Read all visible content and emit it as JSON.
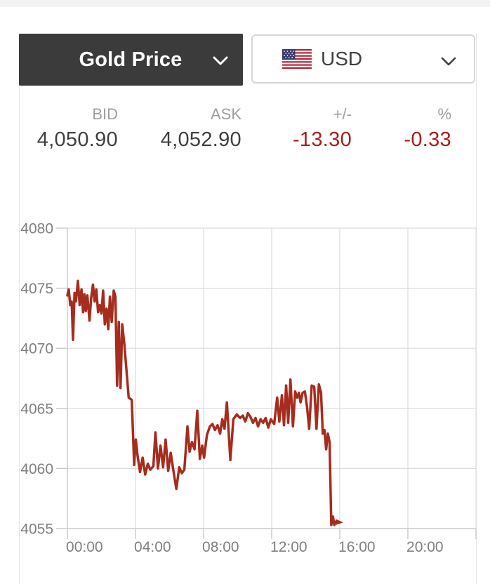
{
  "header": {
    "metal_select": {
      "label": "Gold Price",
      "icon": "chevron-down"
    },
    "currency_select": {
      "label": "USD",
      "flag": "us-flag",
      "icon": "chevron-down"
    }
  },
  "quote": {
    "columns": [
      {
        "header": "BID",
        "value": "4,050.90"
      },
      {
        "header": "ASK",
        "value": "4,052.90"
      },
      {
        "header": "+/-",
        "value": "-13.30"
      },
      {
        "header": "%",
        "value": "-0.33"
      }
    ]
  },
  "colors": {
    "accent_red": "#A81B1B",
    "line_red": "#A62C1E",
    "dark_panel": "#3B3B3B",
    "grid_gray": "#DCDCDC",
    "axis_text_gray": "#808080"
  },
  "chart_data": {
    "type": "line",
    "title": "",
    "xlabel": "",
    "ylabel": "",
    "grid": true,
    "legend": false,
    "x_axis": {
      "range_hours": [
        0,
        24
      ],
      "start_time": "23:00",
      "gridline_hours": [
        0,
        4,
        8,
        12,
        16,
        20,
        24
      ],
      "label_hours": [
        1,
        5,
        9,
        13,
        17,
        21
      ],
      "labels": [
        "00:00",
        "04:00",
        "08:00",
        "12:00",
        "16:00",
        "20:00"
      ]
    },
    "y_axis": {
      "range": [
        4055,
        4080
      ],
      "ticks": [
        4080,
        4075,
        4070,
        4065,
        4060,
        4055
      ]
    },
    "series": [
      {
        "name": "gold-price-usd",
        "color": "#A62C1E",
        "end_marker": "flag",
        "points": [
          [
            0.0,
            4074.4
          ],
          [
            0.08,
            4074.9
          ],
          [
            0.17,
            4073.6
          ],
          [
            0.25,
            4073.9
          ],
          [
            0.33,
            4070.7
          ],
          [
            0.42,
            4074.6
          ],
          [
            0.5,
            4073.9
          ],
          [
            0.62,
            4075.6
          ],
          [
            0.72,
            4073.6
          ],
          [
            0.83,
            4074.9
          ],
          [
            0.92,
            4073.0
          ],
          [
            1.0,
            4074.5
          ],
          [
            1.08,
            4073.1
          ],
          [
            1.17,
            4074.4
          ],
          [
            1.3,
            4072.3
          ],
          [
            1.4,
            4074.2
          ],
          [
            1.5,
            4075.3
          ],
          [
            1.6,
            4073.9
          ],
          [
            1.7,
            4074.9
          ],
          [
            1.8,
            4073.0
          ],
          [
            1.9,
            4073.6
          ],
          [
            2.0,
            4072.9
          ],
          [
            2.1,
            4074.8
          ],
          [
            2.2,
            4072.0
          ],
          [
            2.3,
            4073.3
          ],
          [
            2.4,
            4071.6
          ],
          [
            2.5,
            4074.3
          ],
          [
            2.6,
            4072.2
          ],
          [
            2.72,
            4074.8
          ],
          [
            2.82,
            4074.3
          ],
          [
            2.92,
            4066.9
          ],
          [
            3.02,
            4072.2
          ],
          [
            3.12,
            4066.7
          ],
          [
            3.22,
            4072.0
          ],
          [
            3.35,
            4070.3
          ],
          [
            3.48,
            4068.0
          ],
          [
            3.6,
            4065.9
          ],
          [
            3.78,
            4065.7
          ],
          [
            3.92,
            4060.3
          ],
          [
            4.02,
            4062.4
          ],
          [
            4.12,
            4061.1
          ],
          [
            4.27,
            4059.7
          ],
          [
            4.42,
            4060.9
          ],
          [
            4.57,
            4059.5
          ],
          [
            4.72,
            4060.4
          ],
          [
            4.87,
            4059.9
          ],
          [
            5.05,
            4060.2
          ],
          [
            5.17,
            4063.0
          ],
          [
            5.32,
            4060.0
          ],
          [
            5.47,
            4061.9
          ],
          [
            5.62,
            4060.1
          ],
          [
            5.77,
            4062.4
          ],
          [
            5.92,
            4059.8
          ],
          [
            6.07,
            4061.3
          ],
          [
            6.22,
            4059.9
          ],
          [
            6.4,
            4058.3
          ],
          [
            6.57,
            4060.1
          ],
          [
            6.72,
            4059.6
          ],
          [
            6.87,
            4059.9
          ],
          [
            7.05,
            4063.5
          ],
          [
            7.18,
            4061.4
          ],
          [
            7.32,
            4062.2
          ],
          [
            7.47,
            4061.6
          ],
          [
            7.63,
            4064.8
          ],
          [
            7.78,
            4060.8
          ],
          [
            7.92,
            4061.9
          ],
          [
            8.03,
            4060.9
          ],
          [
            8.2,
            4062.8
          ],
          [
            8.37,
            4063.5
          ],
          [
            8.52,
            4063.7
          ],
          [
            8.67,
            4063.2
          ],
          [
            8.82,
            4063.6
          ],
          [
            8.97,
            4062.9
          ],
          [
            9.1,
            4064.1
          ],
          [
            9.23,
            4063.3
          ],
          [
            9.37,
            4065.5
          ],
          [
            9.57,
            4060.7
          ],
          [
            9.75,
            4064.1
          ],
          [
            9.95,
            4064.5
          ],
          [
            10.15,
            4064.2
          ],
          [
            10.3,
            4064.4
          ],
          [
            10.45,
            4063.9
          ],
          [
            10.6,
            4064.6
          ],
          [
            10.75,
            4064.3
          ],
          [
            10.9,
            4063.8
          ],
          [
            11.05,
            4064.2
          ],
          [
            11.2,
            4063.5
          ],
          [
            11.35,
            4064.1
          ],
          [
            11.5,
            4063.8
          ],
          [
            11.65,
            4064.2
          ],
          [
            11.8,
            4063.4
          ],
          [
            11.95,
            4064.1
          ],
          [
            12.15,
            4063.7
          ],
          [
            12.32,
            4065.9
          ],
          [
            12.45,
            4063.9
          ],
          [
            12.6,
            4066.1
          ],
          [
            12.72,
            4063.6
          ],
          [
            12.85,
            4066.9
          ],
          [
            12.97,
            4063.8
          ],
          [
            13.1,
            4067.4
          ],
          [
            13.25,
            4063.5
          ],
          [
            13.38,
            4066.4
          ],
          [
            13.5,
            4065.9
          ],
          [
            13.6,
            4066.3
          ],
          [
            13.7,
            4065.5
          ],
          [
            13.82,
            4066.3
          ],
          [
            13.95,
            4066.4
          ],
          [
            14.08,
            4065.1
          ],
          [
            14.2,
            4063.3
          ],
          [
            14.35,
            4066.9
          ],
          [
            14.5,
            4066.8
          ],
          [
            14.63,
            4063.3
          ],
          [
            14.77,
            4067.0
          ],
          [
            14.9,
            4066.3
          ],
          [
            15.0,
            4062.9
          ],
          [
            15.1,
            4063.2
          ],
          [
            15.2,
            4061.6
          ],
          [
            15.3,
            4062.9
          ],
          [
            15.4,
            4062.2
          ],
          [
            15.5,
            4055.3
          ],
          [
            15.6,
            4056.0
          ],
          [
            15.68,
            4055.3
          ],
          [
            15.79,
            4055.6
          ]
        ]
      }
    ]
  }
}
